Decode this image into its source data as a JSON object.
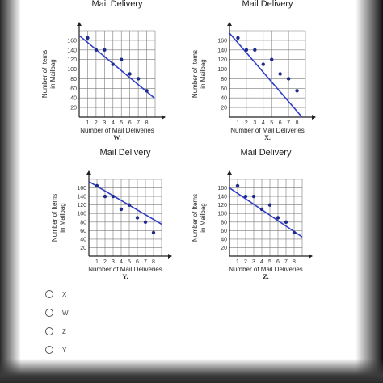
{
  "chart_data": [
    {
      "type": "scatter",
      "title": "Mail Delivery",
      "xlabel": "Number of Mail Deliveries",
      "ylabel": "Number of Items in Mailbag",
      "caption": "W.",
      "x_ticks": [
        1,
        2,
        3,
        4,
        5,
        6,
        7,
        8
      ],
      "y_ticks": [
        20,
        40,
        60,
        80,
        100,
        120,
        140,
        160
      ],
      "xlim": [
        0,
        9
      ],
      "ylim": [
        0,
        180
      ],
      "points": [
        [
          1,
          165
        ],
        [
          2,
          140
        ],
        [
          3,
          140
        ],
        [
          4,
          110
        ],
        [
          5,
          120
        ],
        [
          6,
          90
        ],
        [
          7,
          80
        ],
        [
          8,
          55
        ]
      ],
      "trend_line": [
        [
          0,
          170
        ],
        [
          8.9,
          40
        ]
      ]
    },
    {
      "type": "scatter",
      "title": "Mail Delivery",
      "xlabel": "Number of Mail Deliveries",
      "ylabel": "Number of Items in Mailbag",
      "caption": "X.",
      "x_ticks": [
        1,
        2,
        3,
        4,
        5,
        6,
        7,
        8
      ],
      "y_ticks": [
        20,
        40,
        60,
        80,
        100,
        120,
        140,
        160
      ],
      "xlim": [
        0,
        9
      ],
      "ylim": [
        0,
        180
      ],
      "points": [
        [
          1,
          165
        ],
        [
          2,
          140
        ],
        [
          3,
          140
        ],
        [
          4,
          110
        ],
        [
          5,
          120
        ],
        [
          6,
          90
        ],
        [
          7,
          80
        ],
        [
          8,
          55
        ]
      ],
      "trend_line": [
        [
          0,
          175
        ],
        [
          8.6,
          0
        ]
      ]
    },
    {
      "type": "scatter",
      "title": "Mail Delivery",
      "xlabel": "Number of Mail Deliveries",
      "ylabel": "Number of Items in Mailbag",
      "caption": "Y.",
      "x_ticks": [
        1,
        2,
        3,
        4,
        5,
        6,
        7,
        8
      ],
      "y_ticks": [
        20,
        40,
        60,
        80,
        100,
        120,
        140,
        160
      ],
      "xlim": [
        0,
        9
      ],
      "ylim": [
        0,
        180
      ],
      "points": [
        [
          1,
          165
        ],
        [
          2,
          140
        ],
        [
          3,
          140
        ],
        [
          4,
          110
        ],
        [
          5,
          120
        ],
        [
          6,
          90
        ],
        [
          7,
          80
        ],
        [
          8,
          55
        ]
      ],
      "trend_line": [
        [
          0,
          175
        ],
        [
          9,
          75
        ]
      ]
    },
    {
      "type": "scatter",
      "title": "Mail Delivery",
      "xlabel": "Number of Mail Deliveries",
      "ylabel": "Number of Items in Mailbag",
      "caption": "Z.",
      "x_ticks": [
        1,
        2,
        3,
        4,
        5,
        6,
        7,
        8
      ],
      "y_ticks": [
        20,
        40,
        60,
        80,
        100,
        120,
        140,
        160
      ],
      "xlim": [
        0,
        9
      ],
      "ylim": [
        0,
        180
      ],
      "points": [
        [
          1,
          165
        ],
        [
          2,
          140
        ],
        [
          3,
          140
        ],
        [
          4,
          110
        ],
        [
          5,
          120
        ],
        [
          6,
          90
        ],
        [
          7,
          80
        ],
        [
          8,
          55
        ]
      ],
      "trend_line": [
        [
          0,
          160
        ],
        [
          9,
          45
        ]
      ]
    }
  ],
  "options": [
    "X",
    "W",
    "Z",
    "Y"
  ],
  "colors": {
    "points": "#1e2a8c",
    "trend_line": "#2f3ec8",
    "axis": "#222222",
    "grid": "#7a7a7a"
  }
}
